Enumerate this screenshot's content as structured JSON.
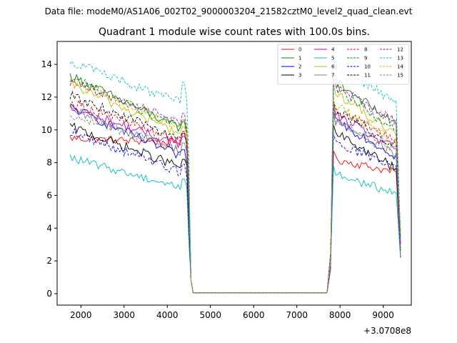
{
  "chart_data": {
    "type": "line",
    "suptitle": "Data file: modeM0/AS1A06_002T02_9000003204_21582cztM0_level2_quad_clean.evt",
    "title": "Quadrant 1 module wise count rates with 100.0s bins.",
    "xlabel": "",
    "ylabel": "",
    "x_offset_label": "+3.0708e8",
    "xlim": [
      1450,
      9650
    ],
    "ylim": [
      -0.7,
      15.4
    ],
    "xticks": [
      2000,
      3000,
      4000,
      5000,
      6000,
      7000,
      8000,
      9000
    ],
    "yticks": [
      0,
      2,
      4,
      6,
      8,
      10,
      12,
      14
    ],
    "legend_position": "upper-right",
    "segments": [
      {
        "start": 1750,
        "end": 4550
      },
      {
        "start": 7750,
        "end": 9350
      }
    ],
    "series": [
      {
        "name": "0",
        "color": "#ff0000",
        "style": "solid",
        "level1": 9.5,
        "end1": 9.2,
        "level2": 8.2,
        "end2": 7.4,
        "noise": 0.25
      },
      {
        "name": "1",
        "color": "#008000",
        "style": "solid",
        "level1": 13.3,
        "end1": 9.9,
        "level2": 13.0,
        "end2": 10.3,
        "noise": 0.3
      },
      {
        "name": "2",
        "color": "#0000ff",
        "style": "solid",
        "level1": 11.4,
        "end1": 8.2,
        "level2": 10.6,
        "end2": 8.4,
        "noise": 0.3
      },
      {
        "name": "3",
        "color": "#000000",
        "style": "solid",
        "level1": 10.2,
        "end1": 7.6,
        "level2": 9.8,
        "end2": 7.6,
        "noise": 0.3
      },
      {
        "name": "4",
        "color": "#bf00bf",
        "style": "solid",
        "level1": 11.3,
        "end1": 9.0,
        "level2": 10.9,
        "end2": 8.8,
        "noise": 0.3
      },
      {
        "name": "5",
        "color": "#00bfbf",
        "style": "solid",
        "level1": 8.3,
        "end1": 6.4,
        "level2": 7.3,
        "end2": 6.1,
        "noise": 0.25
      },
      {
        "name": "6",
        "color": "#bfbf00",
        "style": "solid",
        "level1": 12.8,
        "end1": 9.6,
        "level2": 12.3,
        "end2": 9.6,
        "noise": 0.3
      },
      {
        "name": "7",
        "color": "#808080",
        "style": "solid",
        "level1": 11.2,
        "end1": 8.6,
        "level2": 10.5,
        "end2": 8.5,
        "noise": 0.3
      },
      {
        "name": "8",
        "color": "#ff0000",
        "style": "dashed",
        "level1": 11.7,
        "end1": 9.2,
        "level2": 11.2,
        "end2": 9.4,
        "noise": 0.3
      },
      {
        "name": "9",
        "color": "#008000",
        "style": "dashed",
        "level1": 13.2,
        "end1": 10.0,
        "level2": 12.6,
        "end2": 9.9,
        "noise": 0.3
      },
      {
        "name": "10",
        "color": "#0000ff",
        "style": "dashed",
        "level1": 9.9,
        "end1": 7.3,
        "level2": 9.2,
        "end2": 7.7,
        "noise": 0.3
      },
      {
        "name": "11",
        "color": "#000000",
        "style": "dashed",
        "level1": 12.1,
        "end1": 9.3,
        "level2": 11.2,
        "end2": 9.0,
        "noise": 0.3
      },
      {
        "name": "12",
        "color": "#bf00bf",
        "style": "dashed",
        "level1": 12.9,
        "end1": 10.4,
        "level2": 12.6,
        "end2": 10.5,
        "noise": 0.3
      },
      {
        "name": "13",
        "color": "#00bfbf",
        "style": "dashed",
        "level1": 14.2,
        "end1": 11.5,
        "level2": 13.9,
        "end2": 11.7,
        "noise": 0.3
      },
      {
        "name": "14",
        "color": "#bfbf00",
        "style": "dashed",
        "level1": 13.0,
        "end1": 10.0,
        "level2": 11.5,
        "end2": 9.2,
        "noise": 0.3
      },
      {
        "name": "15",
        "color": "#808080",
        "style": "dashed",
        "level1": 11.0,
        "end1": 8.6,
        "level2": 10.6,
        "end2": 8.8,
        "noise": 0.3
      }
    ]
  }
}
